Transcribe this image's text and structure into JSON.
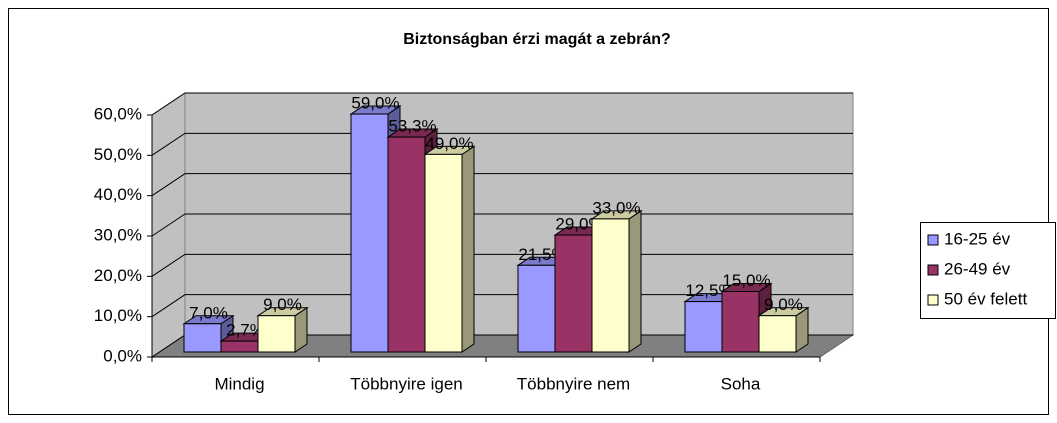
{
  "chart_data": {
    "type": "bar3d",
    "title": "Biztonságban érzi magát a zebrán?",
    "categories": [
      "Mindig",
      "Többnyire igen",
      "Többnyire nem",
      "Soha"
    ],
    "series": [
      {
        "name": "16-25 év",
        "color": "#9999ff",
        "values": [
          7.0,
          59.0,
          21.5,
          12.5
        ],
        "value_labels": [
          "7,0%",
          "59,0%",
          "21,5%",
          "12,5%"
        ]
      },
      {
        "name": "26-49 év",
        "color": "#993366",
        "values": [
          2.7,
          53.3,
          29.0,
          15.0
        ],
        "value_labels": [
          "2,7%",
          "53,3%",
          "29,0%",
          "15,0%"
        ]
      },
      {
        "name": "50 év felett",
        "color": "#ffffcc",
        "values": [
          9.0,
          49.0,
          33.0,
          9.0
        ],
        "value_labels": [
          "9,0%",
          "49,0%",
          "33,0%",
          "9,0%"
        ]
      }
    ],
    "ylim": [
      0,
      60
    ],
    "yticks": [
      {
        "value": 0,
        "label": "0,0%"
      },
      {
        "value": 10,
        "label": "10,0%"
      },
      {
        "value": 20,
        "label": "20,0%"
      },
      {
        "value": 30,
        "label": "30,0%"
      },
      {
        "value": 40,
        "label": "40,0%"
      },
      {
        "value": 50,
        "label": "50,0%"
      },
      {
        "value": 60,
        "label": "60,0%"
      }
    ],
    "grid": true,
    "legend": "right"
  }
}
